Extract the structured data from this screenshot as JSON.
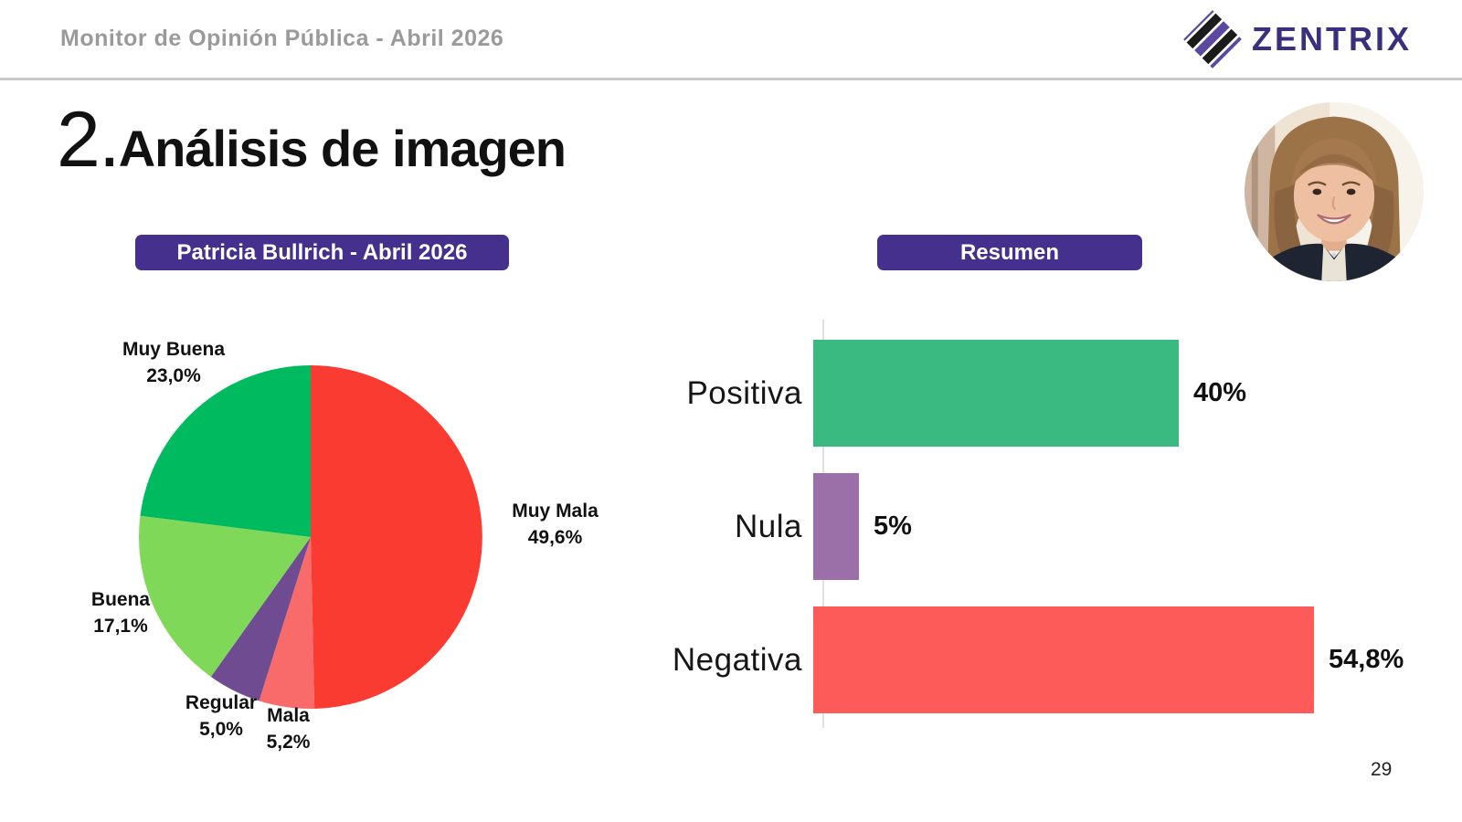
{
  "header": {
    "title": "Monitor de Opinión Pública - Abril 2026",
    "brand": "ZENTRIX"
  },
  "page": {
    "section_number": "2.",
    "section_title": "Análisis de imagen",
    "page_number": "29"
  },
  "badges": {
    "pie": "Patricia Bullrich - Abril 2026",
    "bar": "Resumen"
  },
  "colors": {
    "badge_purple": "#45308d",
    "brand_text": "#382f7e",
    "logo_purple": "#5b49a0",
    "logo_black": "#1b1b1b",
    "header_text_gray": "#9a9a9a",
    "divider_gray": "#c9c9c9",
    "axis_gray": "#e0e0e0"
  },
  "chart_data": [
    {
      "type": "pie",
      "title": "Patricia Bullrich - Abril 2026",
      "labels": [
        "Muy Mala",
        "Mala",
        "Regular",
        "Buena",
        "Muy Buena"
      ],
      "values": [
        49.6,
        5.2,
        5.0,
        17.1,
        23.0
      ],
      "display_values": [
        "49,6%",
        "5,2%",
        "5,0%",
        "17,1%",
        "23,0%"
      ],
      "colors": [
        "#f93b32",
        "#f96b6b",
        "#6f4b92",
        "#7fd857",
        "#00ba60"
      ],
      "start_angle_deg": 0,
      "direction": "clockwise",
      "legend": "off"
    },
    {
      "type": "bar",
      "orientation": "horizontal",
      "title": "Resumen",
      "categories": [
        "Positiva",
        "Nula",
        "Negativa"
      ],
      "values": [
        40,
        5,
        54.8
      ],
      "display_values": [
        "40%",
        "5%",
        "54,8%"
      ],
      "colors": [
        "#3ab980",
        "#9b6fa8",
        "#fd5a5a"
      ],
      "xlim": [
        0,
        60
      ],
      "grid": "off",
      "value_labels": "outside-end"
    }
  ]
}
